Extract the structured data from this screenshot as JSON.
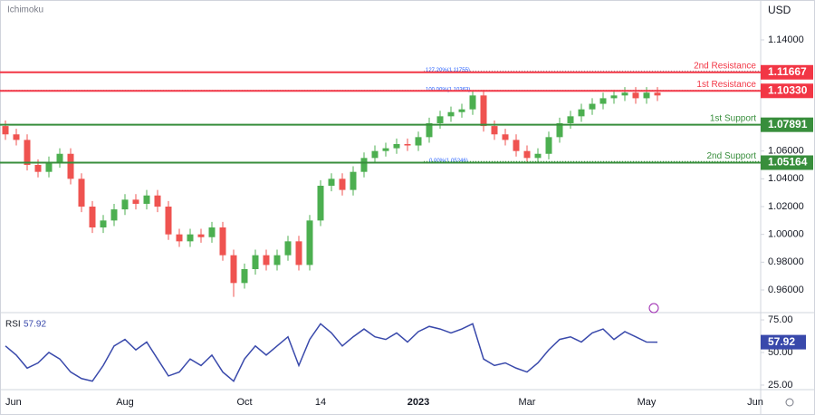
{
  "chart_data": [
    {
      "type": "candlestick",
      "indicator": "Ichimoku",
      "currency": "USD",
      "categories": [
        "Jun",
        null,
        null,
        null,
        null,
        null,
        null,
        null,
        null,
        null,
        null,
        "Aug",
        null,
        null,
        null,
        null,
        null,
        null,
        null,
        null,
        null,
        null,
        "Oct",
        null,
        null,
        null,
        null,
        null,
        null,
        "14",
        null,
        null,
        null,
        null,
        null,
        null,
        null,
        null,
        "2023",
        null,
        null,
        null,
        null,
        null,
        null,
        null,
        null,
        null,
        "Mar",
        null,
        null,
        null,
        null,
        null,
        null,
        null,
        null,
        null,
        null,
        "May",
        null,
        null,
        null,
        null,
        null,
        null,
        null,
        null,
        null,
        "Jun"
      ],
      "open": [
        1.078,
        1.072,
        1.068,
        1.05,
        1.045,
        1.052,
        1.058,
        1.04,
        1.02,
        1.005,
        1.01,
        1.018,
        1.025,
        1.022,
        1.028,
        1.02,
        1.0,
        0.995,
        1.0,
        0.998,
        1.005,
        0.985,
        0.965,
        0.975,
        0.985,
        0.978,
        0.985,
        0.995,
        0.978,
        1.01,
        1.035,
        1.04,
        1.032,
        1.045,
        1.055,
        1.06,
        1.062,
        1.065,
        1.064,
        1.07,
        1.08,
        1.085,
        1.088,
        1.09,
        1.1,
        1.078,
        1.072,
        1.068,
        1.06,
        1.055,
        1.058,
        1.07,
        1.08,
        1.085,
        1.09,
        1.094,
        1.098,
        1.1,
        1.102,
        1.098,
        1.102,
        null,
        null,
        null,
        null,
        null,
        null,
        null,
        null,
        null
      ],
      "high": [
        1.082,
        1.076,
        1.072,
        1.054,
        1.056,
        1.062,
        1.062,
        1.044,
        1.024,
        1.014,
        1.022,
        1.029,
        1.029,
        1.032,
        1.032,
        1.024,
        1.004,
        1.004,
        1.004,
        1.009,
        1.009,
        0.989,
        0.979,
        0.989,
        0.989,
        0.989,
        0.999,
        0.999,
        1.014,
        1.039,
        1.044,
        1.044,
        1.049,
        1.059,
        1.064,
        1.066,
        1.069,
        1.069,
        1.074,
        1.084,
        1.089,
        1.092,
        1.094,
        1.1036,
        1.104,
        1.082,
        1.076,
        1.072,
        1.064,
        1.062,
        1.074,
        1.084,
        1.089,
        1.094,
        1.098,
        1.102,
        1.104,
        1.106,
        1.106,
        1.106,
        1.106,
        null,
        null,
        null,
        null,
        null,
        null,
        null,
        null,
        null
      ],
      "low": [
        1.068,
        1.064,
        1.046,
        1.041,
        1.041,
        1.048,
        1.036,
        1.016,
        1.001,
        1.001,
        1.006,
        1.014,
        1.018,
        1.018,
        1.016,
        0.996,
        0.991,
        0.991,
        0.994,
        0.994,
        0.981,
        0.955,
        0.961,
        0.971,
        0.974,
        0.974,
        0.981,
        0.974,
        0.974,
        1.006,
        1.031,
        1.028,
        1.028,
        1.041,
        1.051,
        1.056,
        1.058,
        1.06,
        1.06,
        1.066,
        1.076,
        1.081,
        1.084,
        1.086,
        1.074,
        1.068,
        1.064,
        1.056,
        1.0525,
        1.051,
        1.054,
        1.066,
        1.076,
        1.081,
        1.086,
        1.09,
        1.094,
        1.096,
        1.094,
        1.094,
        1.096,
        null,
        null,
        null,
        null,
        null,
        null,
        null,
        null,
        null
      ],
      "close": [
        1.072,
        1.068,
        1.05,
        1.045,
        1.052,
        1.058,
        1.04,
        1.02,
        1.005,
        1.01,
        1.018,
        1.025,
        1.022,
        1.028,
        1.02,
        1.0,
        0.995,
        1.0,
        0.998,
        1.005,
        0.985,
        0.965,
        0.975,
        0.985,
        0.978,
        0.985,
        0.995,
        0.978,
        1.01,
        1.035,
        1.04,
        1.032,
        1.045,
        1.055,
        1.06,
        1.062,
        1.065,
        1.064,
        1.07,
        1.08,
        1.085,
        1.088,
        1.09,
        1.1,
        1.078,
        1.072,
        1.068,
        1.06,
        1.055,
        1.058,
        1.07,
        1.08,
        1.085,
        1.09,
        1.094,
        1.098,
        1.1,
        1.102,
        1.098,
        1.102,
        1.1,
        null,
        null,
        null,
        null,
        null,
        null,
        null,
        null,
        null
      ],
      "up_color": "#4caf50",
      "down_color": "#ef5350",
      "ylim": [
        0.9437,
        1.1687
      ],
      "yticks": [
        {
          "value": 1.14,
          "label": "1.14000"
        },
        {
          "value": 1.06,
          "label": "1.06000"
        },
        {
          "value": 1.04,
          "label": "1.04000"
        },
        {
          "value": 1.02,
          "label": "1.02000"
        },
        {
          "value": 1.0,
          "label": "1.00000"
        },
        {
          "value": 0.98,
          "label": "0.98000"
        },
        {
          "value": 0.96,
          "label": "0.96000"
        }
      ],
      "levels": [
        {
          "name": "2nd Resistance",
          "value": 1.11667,
          "color": "#f23645"
        },
        {
          "name": "1st Resistance",
          "value": 1.1033,
          "value_label": "1.10330",
          "color": "#f23645"
        },
        {
          "name": "1st Support",
          "value": 1.07891,
          "color": "#388e3c"
        },
        {
          "name": "2nd Support",
          "value": 1.05164,
          "color": "#388e3c"
        }
      ],
      "fibonacci": [
        {
          "value": 1.11755,
          "label": "127.20%(1.11755)"
        },
        {
          "value": 1.10363,
          "label": "100.00%(1.10363)"
        },
        {
          "value": 1.05246,
          "label": "0.00%(1.05246)"
        }
      ]
    },
    {
      "type": "line",
      "name": "RSI",
      "color": "#3949ab",
      "values": [
        55,
        48,
        38,
        42,
        50,
        45,
        35,
        30,
        28,
        40,
        55,
        60,
        52,
        58,
        45,
        32,
        35,
        45,
        40,
        48,
        35,
        28,
        45,
        55,
        48,
        55,
        62,
        40,
        60,
        72,
        65,
        55,
        62,
        68,
        62,
        60,
        65,
        58,
        66,
        70,
        68,
        65,
        68,
        72,
        45,
        40,
        42,
        38,
        35,
        42,
        52,
        60,
        62,
        58,
        65,
        68,
        60,
        66,
        62,
        58,
        57.92
      ],
      "ylim": [
        21.5,
        78.5
      ],
      "yticks": [
        {
          "value": 75,
          "label": "75.00"
        },
        {
          "value": 50,
          "label": "50.00"
        },
        {
          "value": 25,
          "label": "25.00"
        }
      ]
    }
  ]
}
